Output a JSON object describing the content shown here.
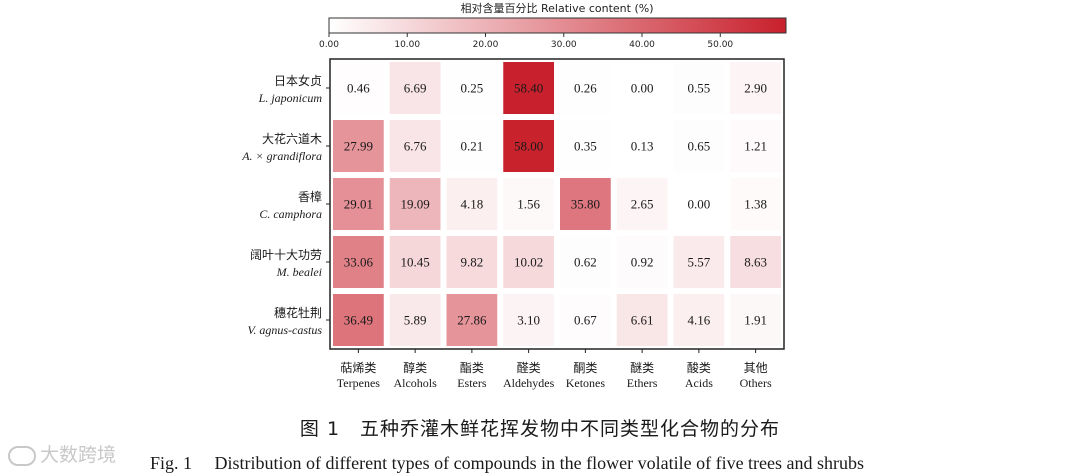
{
  "chart_data": {
    "type": "heatmap",
    "colorbar": {
      "title": "相对含量百分比  Relative content (%)",
      "ticks": [
        "0.00",
        "10.00",
        "20.00",
        "30.00",
        "40.00",
        "50.00"
      ],
      "tick_values": [
        0,
        10,
        20,
        30,
        40,
        50
      ],
      "range": [
        0,
        58.4
      ],
      "color_low": "#ffffff",
      "color_high": "#c8202c"
    },
    "rows": [
      {
        "zh": "日本女贞",
        "latin": "L. japonicum"
      },
      {
        "zh": "大花六道木",
        "latin": "A. × grandiflora"
      },
      {
        "zh": "香樟",
        "latin": "C. camphora"
      },
      {
        "zh": "阔叶十大功劳",
        "latin": "M. bealei"
      },
      {
        "zh": "穗花牡荆",
        "latin": "V. agnus-castus"
      }
    ],
    "columns": [
      {
        "zh": "萜烯类",
        "en": "Terpenes"
      },
      {
        "zh": "醇类",
        "en": "Alcohols"
      },
      {
        "zh": "酯类",
        "en": "Esters"
      },
      {
        "zh": "醛类",
        "en": "Aldehydes"
      },
      {
        "zh": "酮类",
        "en": "Ketones"
      },
      {
        "zh": "醚类",
        "en": "Ethers"
      },
      {
        "zh": "酸类",
        "en": "Acids"
      },
      {
        "zh": "其他",
        "en": "Others"
      }
    ],
    "values": [
      [
        "0.46",
        "6.69",
        "0.25",
        "58.40",
        "0.26",
        "0.00",
        "0.55",
        "2.90"
      ],
      [
        "27.99",
        "6.76",
        "0.21",
        "58.00",
        "0.35",
        "0.13",
        "0.65",
        "1.21"
      ],
      [
        "29.01",
        "19.09",
        "4.18",
        "1.56",
        "35.80",
        "2.65",
        "0.00",
        "1.38"
      ],
      [
        "33.06",
        "10.45",
        "9.82",
        "10.02",
        "0.62",
        "0.92",
        "5.57",
        "8.63"
      ],
      [
        "36.49",
        "5.89",
        "27.86",
        "3.10",
        "0.67",
        "6.61",
        "4.16",
        "1.91"
      ]
    ]
  },
  "caption": {
    "zh": "图 1　五种乔灌木鲜花挥发物中不同类型化合物的分布",
    "en": "Fig. 1　 Distribution of different types of compounds in the flower volatile of five trees and shrubs"
  },
  "watermark": "大数跨境"
}
